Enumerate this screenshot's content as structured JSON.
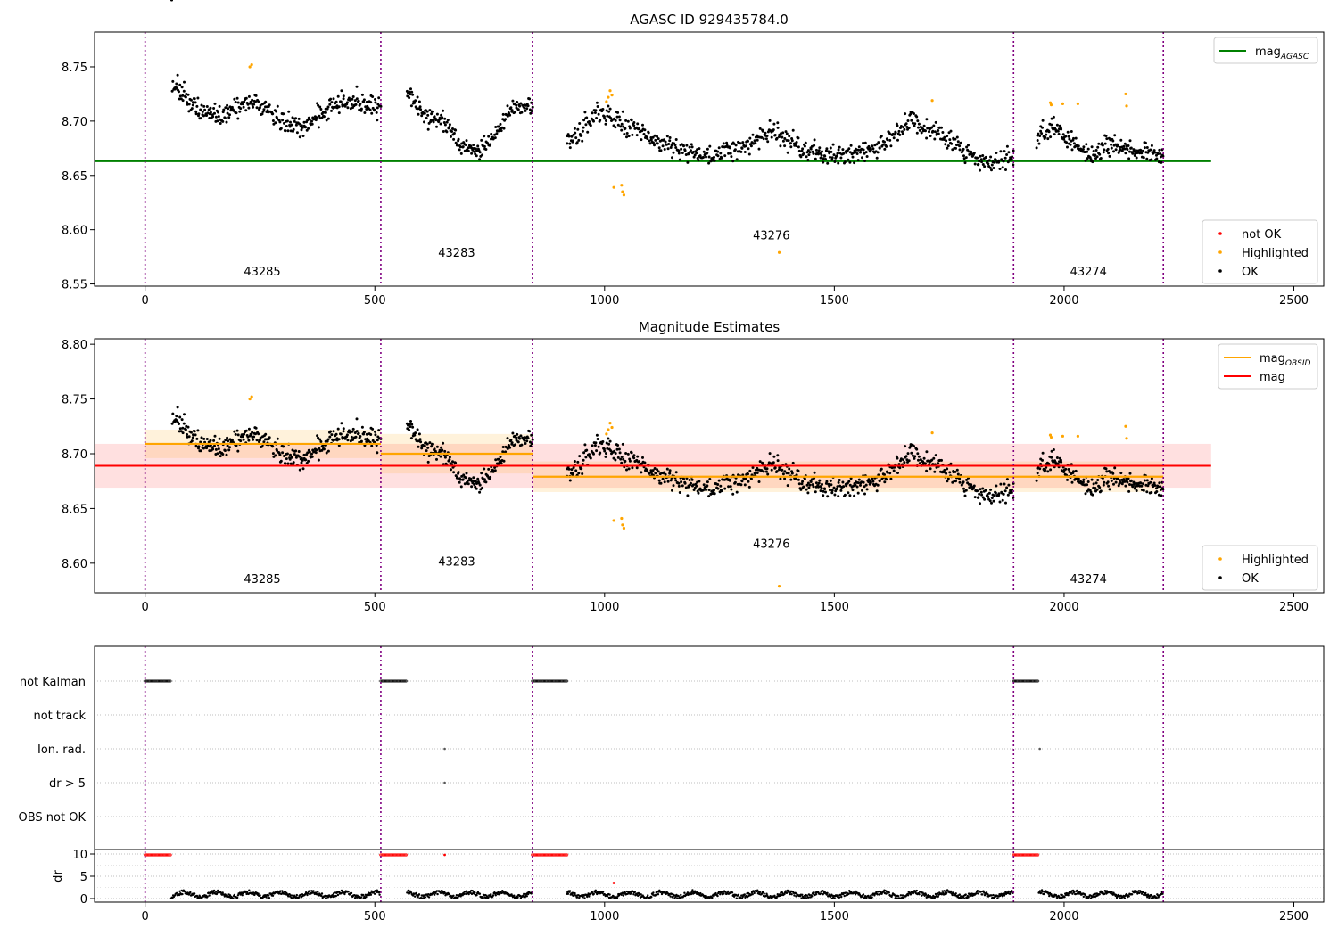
{
  "chart_data": [
    {
      "type": "scatter",
      "title": "AGASC ID 929435784.0",
      "xlim": [
        -110,
        2565
      ],
      "ylim": [
        8.548,
        8.782
      ],
      "xticks": [
        0,
        500,
        1000,
        1500,
        2000,
        2500
      ],
      "yticks": [
        8.55,
        8.6,
        8.65,
        8.7,
        8.75
      ],
      "grid": false,
      "obsid_boundaries": [
        0,
        513,
        843,
        1890,
        2216
      ],
      "obsid_labels": [
        {
          "label": "43285",
          "x": 255,
          "y": 8.558
        },
        {
          "label": "43283",
          "x": 678,
          "y": 8.575
        },
        {
          "label": "43276",
          "x": 1363,
          "y": 8.591
        },
        {
          "label": "43274",
          "x": 2053,
          "y": 8.558
        }
      ],
      "reference_lines": [
        {
          "name": "mag_AGASC",
          "y": 8.663,
          "x": [
            -110,
            2320
          ],
          "color": "#008000"
        }
      ],
      "legend_upper": {
        "placement": "upper-right",
        "entries": [
          {
            "label": "mag",
            "sub": "AGASC",
            "color": "#008000"
          }
        ]
      },
      "legend_lower": {
        "placement": "lower-right",
        "entries": [
          {
            "label": "not OK",
            "color": "#ff0000"
          },
          {
            "label": "Highlighted",
            "color": "#ffa500"
          },
          {
            "label": "OK",
            "color": "#000000"
          }
        ]
      },
      "highlighted_points": [
        {
          "x": 228,
          "y": 8.75
        },
        {
          "x": 232,
          "y": 8.752
        },
        {
          "x": 1004,
          "y": 8.718
        },
        {
          "x": 1008,
          "y": 8.722
        },
        {
          "x": 1012,
          "y": 8.728
        },
        {
          "x": 1016,
          "y": 8.724
        },
        {
          "x": 1020,
          "y": 8.639
        },
        {
          "x": 1037,
          "y": 8.641
        },
        {
          "x": 1039,
          "y": 8.635
        },
        {
          "x": 1042,
          "y": 8.632
        },
        {
          "x": 1380,
          "y": 8.579
        },
        {
          "x": 1713,
          "y": 8.719
        },
        {
          "x": 1970,
          "y": 8.717
        },
        {
          "x": 1972,
          "y": 8.715
        },
        {
          "x": 1997,
          "y": 8.716
        },
        {
          "x": 2030,
          "y": 8.716
        },
        {
          "x": 2134,
          "y": 8.725
        },
        {
          "x": 2136,
          "y": 8.714
        }
      ],
      "ok_segments": [
        {
          "start": 58,
          "end": 513,
          "n": 330,
          "base": [
            8.737,
            8.71,
            8.705,
            8.72,
            8.704,
            8.692,
            8.712,
            8.72,
            8.712
          ],
          "spread": 0.009
        },
        {
          "start": 570,
          "end": 843,
          "n": 200,
          "base": [
            8.728,
            8.705,
            8.7,
            8.677,
            8.672,
            8.69,
            8.712,
            8.715
          ],
          "spread": 0.008
        },
        {
          "start": 918,
          "end": 1890,
          "n": 650,
          "base": [
            8.68,
            8.71,
            8.69,
            8.678,
            8.668,
            8.675,
            8.69,
            8.672,
            8.668,
            8.677,
            8.7,
            8.685,
            8.662,
            8.668
          ],
          "spread": 0.009
        },
        {
          "start": 1940,
          "end": 2216,
          "n": 200,
          "base": [
            8.684,
            8.692,
            8.68,
            8.668,
            8.678,
            8.675,
            8.672,
            8.67
          ],
          "spread": 0.009
        }
      ]
    },
    {
      "type": "scatter",
      "title": "Magnitude Estimates",
      "xlim": [
        -110,
        2565
      ],
      "ylim": [
        8.573,
        8.805
      ],
      "xticks": [
        0,
        500,
        1000,
        1500,
        2000,
        2500
      ],
      "yticks": [
        8.6,
        8.65,
        8.7,
        8.75,
        8.8
      ],
      "grid": false,
      "obsid_boundaries": [
        0,
        513,
        843,
        1890,
        2216
      ],
      "obsid_labels": [
        {
          "label": "43285",
          "x": 255,
          "y": 8.582
        },
        {
          "label": "43283",
          "x": 678,
          "y": 8.598
        },
        {
          "label": "43276",
          "x": 1363,
          "y": 8.614
        },
        {
          "label": "43274",
          "x": 2053,
          "y": 8.582
        }
      ],
      "mag_line": {
        "name": "mag",
        "y": 8.689,
        "band": [
          8.669,
          8.709
        ],
        "x": [
          -110,
          2320
        ],
        "color": "#ff0000"
      },
      "mag_obsid": [
        {
          "x": [
            0,
            513
          ],
          "y": 8.709,
          "band": [
            8.696,
            8.722
          ]
        },
        {
          "x": [
            513,
            843
          ],
          "y": 8.7,
          "band": [
            8.682,
            8.718
          ]
        },
        {
          "x": [
            843,
            1890
          ],
          "y": 8.679,
          "band": [
            8.665,
            8.693
          ]
        },
        {
          "x": [
            1890,
            2216
          ],
          "y": 8.679,
          "band": [
            8.665,
            8.693
          ]
        }
      ],
      "legend_upper": {
        "placement": "upper-right",
        "entries": [
          {
            "label": "mag",
            "sub": "OBSID",
            "color": "#ffa500"
          },
          {
            "label": "mag",
            "sub": "",
            "color": "#ff0000"
          }
        ]
      },
      "legend_lower": {
        "placement": "lower-right",
        "entries": [
          {
            "label": "Highlighted",
            "color": "#ffa500"
          },
          {
            "label": "OK",
            "color": "#000000"
          }
        ]
      }
    },
    {
      "type": "scatter",
      "title": "",
      "xlim": [
        -110,
        2565
      ],
      "xticks": [
        0,
        500,
        1000,
        1500,
        2000,
        2500
      ],
      "flag_rows": [
        "not Kalman",
        "not track",
        "Ion. rad.",
        "dr > 5",
        "OBS not OK"
      ],
      "flag_points": [
        {
          "row": "not Kalman",
          "ranges": [
            [
              0,
              57
            ],
            [
              513,
              570
            ],
            [
              843,
              918
            ],
            [
              1890,
              1945
            ]
          ]
        },
        {
          "row": "Ion. rad.",
          "points": [
            652,
            1947
          ]
        },
        {
          "row": "dr > 5",
          "points": [
            652
          ]
        }
      ],
      "dr_panel": {
        "ylabel": "dr",
        "ylim": [
          -0.8,
          11
        ],
        "yticks": [
          0,
          5,
          10
        ],
        "threshold_points": {
          "y": 9.8,
          "ranges": [
            [
              0,
              57
            ],
            [
              513,
              570
            ],
            [
              843,
              918
            ],
            [
              1890,
              1945
            ]
          ],
          "single": [
            652
          ]
        },
        "outlier": {
          "x": 1020,
          "y": 3.5
        },
        "segments": [
          [
            57,
            513
          ],
          [
            570,
            843
          ],
          [
            918,
            1890
          ],
          [
            1945,
            2216
          ]
        ]
      }
    }
  ]
}
